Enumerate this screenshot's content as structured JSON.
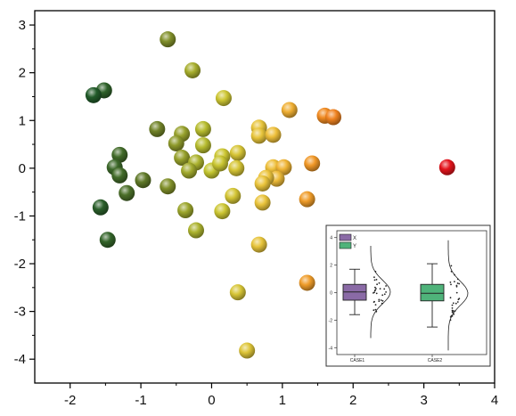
{
  "chart_data": [
    {
      "type": "scatter",
      "title": "",
      "xlabel": "",
      "ylabel": "",
      "xlim": [
        -2.5,
        4
      ],
      "ylim": [
        -4.5,
        3.3
      ],
      "x_ticks": [
        "-2",
        "-1",
        "0",
        "1",
        "2",
        "3",
        "4"
      ],
      "y_ticks": [
        "3",
        "2",
        "1",
        "0",
        "-1",
        "-2",
        "-3",
        "-4"
      ],
      "grid": false,
      "color_encoding": "x value, dark green (low) to yellow to orange to red (high)",
      "colors": [
        "#1f5a2a",
        "#7f8f30",
        "#c8c630",
        "#f0c040",
        "#f28a20",
        "#e8141c"
      ],
      "points": [
        {
          "x": -0.62,
          "y": 2.7
        },
        {
          "x": -0.27,
          "y": 2.05
        },
        {
          "x": -1.52,
          "y": 1.63
        },
        {
          "x": -1.67,
          "y": 1.53
        },
        {
          "x": 0.17,
          "y": 1.47
        },
        {
          "x": -0.77,
          "y": 0.82
        },
        {
          "x": -0.42,
          "y": 0.72
        },
        {
          "x": -0.12,
          "y": 0.82
        },
        {
          "x": -0.5,
          "y": 0.52
        },
        {
          "x": -0.12,
          "y": 0.48
        },
        {
          "x": -1.3,
          "y": 0.28
        },
        {
          "x": -1.37,
          "y": 0.02
        },
        {
          "x": -1.3,
          "y": -0.15
        },
        {
          "x": -0.97,
          "y": -0.25
        },
        {
          "x": -1.2,
          "y": -0.52
        },
        {
          "x": -0.62,
          "y": -0.38
        },
        {
          "x": -1.57,
          "y": -0.82
        },
        {
          "x": -1.47,
          "y": -1.5
        },
        {
          "x": -0.42,
          "y": 0.22
        },
        {
          "x": -0.22,
          "y": 0.12
        },
        {
          "x": -0.32,
          "y": -0.05
        },
        {
          "x": 0.0,
          "y": -0.05
        },
        {
          "x": 0.15,
          "y": 0.25
        },
        {
          "x": 0.12,
          "y": 0.1
        },
        {
          "x": 0.37,
          "y": 0.32
        },
        {
          "x": 0.35,
          "y": 0.0
        },
        {
          "x": -0.37,
          "y": -0.88
        },
        {
          "x": -0.22,
          "y": -1.3
        },
        {
          "x": 0.15,
          "y": -0.9
        },
        {
          "x": 0.3,
          "y": -0.58
        },
        {
          "x": 0.67,
          "y": 0.85
        },
        {
          "x": 0.67,
          "y": 0.68
        },
        {
          "x": 0.87,
          "y": 0.7
        },
        {
          "x": 1.1,
          "y": 1.22
        },
        {
          "x": 0.87,
          "y": 0.02
        },
        {
          "x": 1.02,
          "y": 0.02
        },
        {
          "x": 0.92,
          "y": -0.22
        },
        {
          "x": 0.77,
          "y": -0.2
        },
        {
          "x": 0.72,
          "y": -0.32
        },
        {
          "x": 1.42,
          "y": 0.1
        },
        {
          "x": 1.35,
          "y": -0.65
        },
        {
          "x": 0.72,
          "y": -0.72
        },
        {
          "x": 0.67,
          "y": -1.6
        },
        {
          "x": 0.37,
          "y": -2.6
        },
        {
          "x": 1.35,
          "y": -2.4
        },
        {
          "x": 0.5,
          "y": -3.82
        },
        {
          "x": 1.6,
          "y": 1.1
        },
        {
          "x": 1.72,
          "y": 1.07
        },
        {
          "x": 3.33,
          "y": 0.02
        }
      ]
    },
    {
      "type": "box",
      "categories": [
        "CASE1",
        "CASE2"
      ],
      "legend": [
        "X",
        "Y"
      ],
      "legend_position": "top-left",
      "ylim": [
        -4.5,
        4.5
      ],
      "y_ticks": [
        "4",
        "2",
        "0",
        "-2",
        "-4"
      ],
      "colors": [
        "#8a6aa6",
        "#4fb37a"
      ],
      "series": [
        {
          "name": "X",
          "category": "CASE1",
          "whisker_low": -1.6,
          "q1": -0.55,
          "median": 0.05,
          "q3": 0.6,
          "whisker_high": 1.7
        },
        {
          "name": "Y",
          "category": "CASE2",
          "whisker_low": -2.5,
          "q1": -0.6,
          "median": -0.05,
          "q3": 0.6,
          "whisker_high": 2.1
        }
      ]
    }
  ]
}
